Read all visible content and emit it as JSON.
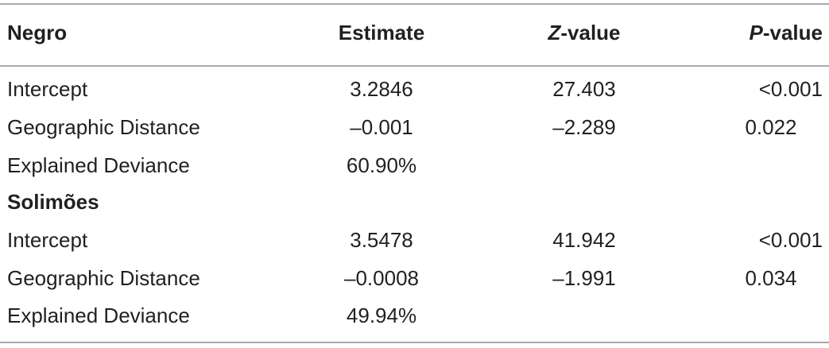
{
  "table": {
    "headers": {
      "col0": "Negro",
      "col1": "Estimate",
      "col2_var": "Z",
      "col2_rest": "-value",
      "col3_var": "P",
      "col3_rest": "-value"
    },
    "groups": [
      {
        "name": "Negro",
        "rows": [
          {
            "term": "Intercept",
            "estimate": "3.2846",
            "z": "27.403",
            "p": "<0.001"
          },
          {
            "term": "Geographic Distance",
            "estimate": "–0.001",
            "z": "–2.289",
            "p": "0.022"
          },
          {
            "term": "Explained Deviance",
            "estimate": "60.90%",
            "z": "",
            "p": ""
          }
        ]
      },
      {
        "name": "Solimões",
        "rows": [
          {
            "term": "Intercept",
            "estimate": "3.5478",
            "z": "41.942",
            "p": "<0.001"
          },
          {
            "term": "Geographic Distance",
            "estimate": "–0.0008",
            "z": "–1.991",
            "p": "0.034"
          },
          {
            "term": "Explained Deviance",
            "estimate": "49.94%",
            "z": "",
            "p": ""
          }
        ]
      }
    ]
  }
}
